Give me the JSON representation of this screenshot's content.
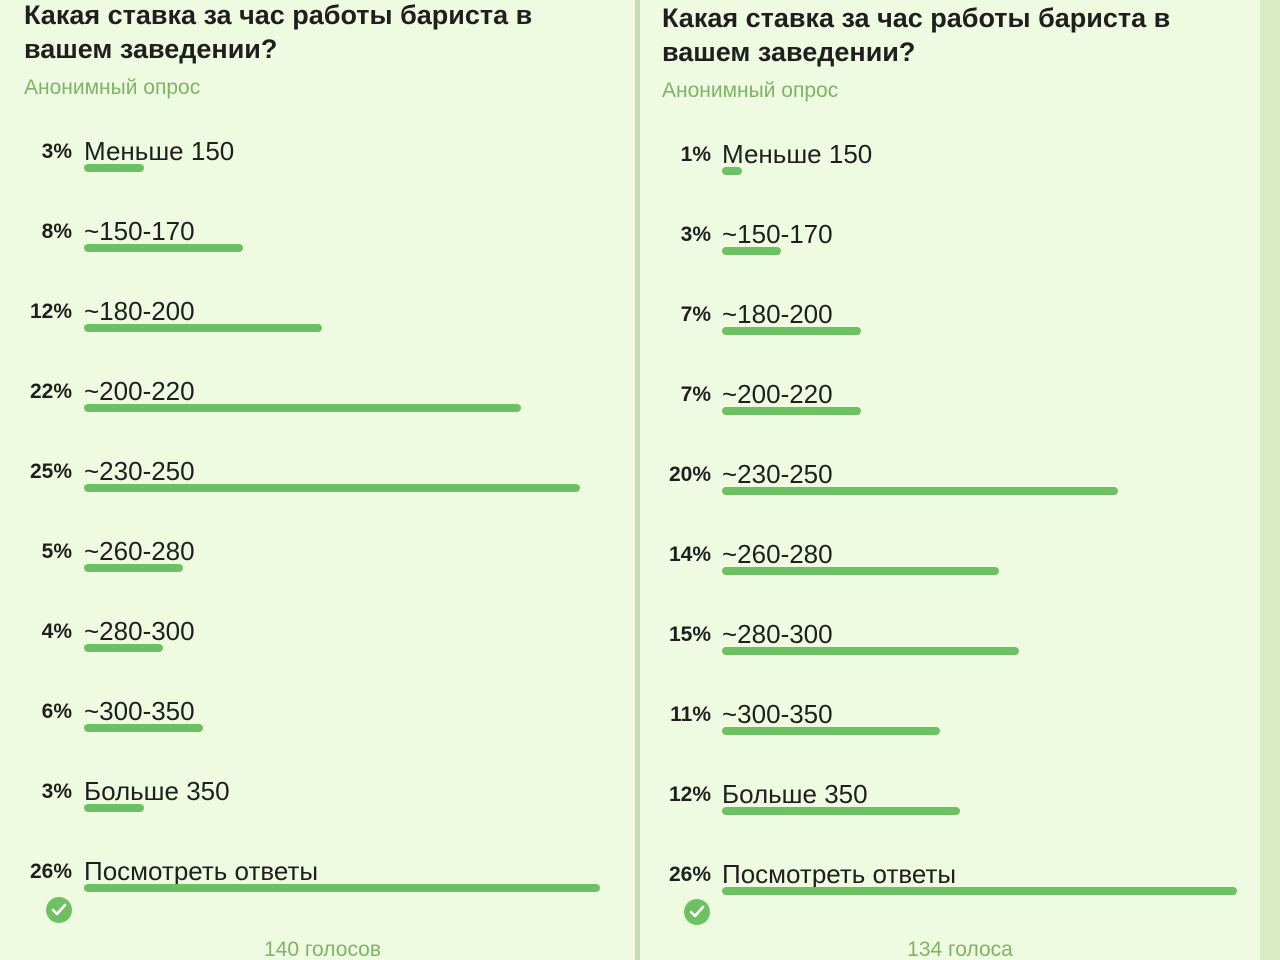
{
  "polls": [
    {
      "question": "Какая ставка за час работы бариста в вашем заведении?",
      "subtitle": "Анонимный опрос",
      "options": [
        {
          "percent_label": "3%",
          "percent": 3,
          "label": "Меньше 150"
        },
        {
          "percent_label": "8%",
          "percent": 8,
          "label": "~150-170"
        },
        {
          "percent_label": "12%",
          "percent": 12,
          "label": "~180-200"
        },
        {
          "percent_label": "22%",
          "percent": 22,
          "label": "~200-220"
        },
        {
          "percent_label": "25%",
          "percent": 25,
          "label": "~230-250"
        },
        {
          "percent_label": "5%",
          "percent": 5,
          "label": "~260-280"
        },
        {
          "percent_label": "4%",
          "percent": 4,
          "label": "~280-300"
        },
        {
          "percent_label": "6%",
          "percent": 6,
          "label": "~300-350"
        },
        {
          "percent_label": "3%",
          "percent": 3,
          "label": "Больше 350"
        },
        {
          "percent_label": "26%",
          "percent": 26,
          "label": "Посмотреть ответы",
          "chosen": true
        }
      ],
      "total_votes": "140 голосов"
    },
    {
      "question": "Какая ставка за час работы бариста в вашем заведении?",
      "subtitle": "Анонимный опрос",
      "options": [
        {
          "percent_label": "1%",
          "percent": 1,
          "label": "Меньше 150"
        },
        {
          "percent_label": "3%",
          "percent": 3,
          "label": "~150-170"
        },
        {
          "percent_label": "7%",
          "percent": 7,
          "label": "~180-200"
        },
        {
          "percent_label": "7%",
          "percent": 7,
          "label": "~200-220"
        },
        {
          "percent_label": "20%",
          "percent": 20,
          "label": "~230-250"
        },
        {
          "percent_label": "14%",
          "percent": 14,
          "label": "~260-280"
        },
        {
          "percent_label": "15%",
          "percent": 15,
          "label": "~280-300"
        },
        {
          "percent_label": "11%",
          "percent": 11,
          "label": "~300-350"
        },
        {
          "percent_label": "12%",
          "percent": 12,
          "label": "Больше 350"
        },
        {
          "percent_label": "26%",
          "percent": 26,
          "label": "Посмотреть ответы",
          "chosen": true
        }
      ],
      "total_votes": "134 голоса"
    }
  ],
  "icons": {
    "chosen_option": "check-circle-icon"
  },
  "colors": {
    "bar": "#6ec163",
    "accent_text": "#7fb468",
    "background": "#effbe0"
  }
}
